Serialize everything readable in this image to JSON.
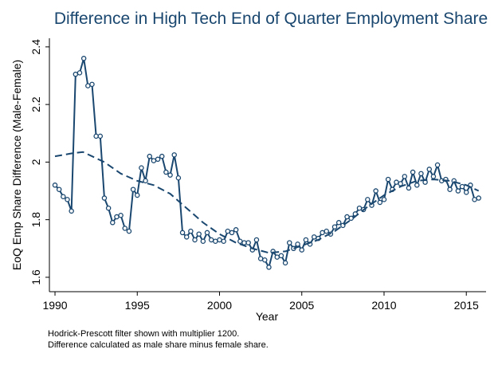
{
  "chart_data": {
    "type": "line",
    "title": "Difference in High Tech End of Quarter Employment Share",
    "x_label": "Year",
    "y_label": "EoQ Emp Share Difference (Male-Female)",
    "notes": [
      "Hodrick-Prescott filter shown with multiplier 1200.",
      "Difference calculated as male share minus female share."
    ],
    "xlim": [
      1989.66,
      2016.2
    ],
    "ylim": [
      1.55,
      2.43
    ],
    "xticks": [
      1990,
      1995,
      2000,
      2005,
      2010,
      2015
    ],
    "yticks": [
      1.6,
      1.8,
      2,
      2.2,
      2.4
    ],
    "series": [
      {
        "color": "#1a476f",
        "style": "solid",
        "markers": true,
        "x": [
          1990,
          1990.25,
          1990.5,
          1990.75,
          1991,
          1991.25,
          1991.5,
          1991.75,
          1992,
          1992.25,
          1992.5,
          1992.75,
          1993,
          1993.25,
          1993.5,
          1993.75,
          1994,
          1994.25,
          1994.5,
          1994.75,
          1995,
          1995.25,
          1995.5,
          1995.75,
          1996,
          1996.25,
          1996.5,
          1996.75,
          1997,
          1997.25,
          1997.5,
          1997.75,
          1998,
          1998.25,
          1998.5,
          1998.75,
          1999,
          1999.25,
          1999.5,
          1999.75,
          2000,
          2000.25,
          2000.5,
          2000.75,
          2001,
          2001.25,
          2001.5,
          2001.75,
          2002,
          2002.25,
          2002.5,
          2002.75,
          2003,
          2003.25,
          2003.5,
          2003.75,
          2004,
          2004.25,
          2004.5,
          2004.75,
          2005,
          2005.25,
          2005.5,
          2005.75,
          2006,
          2006.25,
          2006.5,
          2006.75,
          2007,
          2007.25,
          2007.5,
          2007.75,
          2008,
          2008.25,
          2008.5,
          2008.75,
          2009,
          2009.25,
          2009.5,
          2009.75,
          2010,
          2010.25,
          2010.5,
          2010.75,
          2011,
          2011.25,
          2011.5,
          2011.75,
          2012,
          2012.25,
          2012.5,
          2012.75,
          2013,
          2013.25,
          2013.5,
          2013.75,
          2014,
          2014.25,
          2014.5,
          2014.75,
          2015,
          2015.25,
          2015.5,
          2015.75
        ],
        "values": [
          1.92,
          1.905,
          1.88,
          1.87,
          1.83,
          2.305,
          2.31,
          2.36,
          2.265,
          2.27,
          2.09,
          2.09,
          1.875,
          1.84,
          1.79,
          1.81,
          1.815,
          1.77,
          1.76,
          1.905,
          1.885,
          1.98,
          1.935,
          2.02,
          2.005,
          2.01,
          2.02,
          1.965,
          1.955,
          2.025,
          1.945,
          1.755,
          1.74,
          1.76,
          1.73,
          1.75,
          1.725,
          1.755,
          1.73,
          1.725,
          1.73,
          1.725,
          1.76,
          1.755,
          1.765,
          1.725,
          1.72,
          1.72,
          1.695,
          1.73,
          1.665,
          1.66,
          1.635,
          1.69,
          1.67,
          1.675,
          1.65,
          1.72,
          1.7,
          1.715,
          1.695,
          1.73,
          1.715,
          1.74,
          1.735,
          1.755,
          1.76,
          1.75,
          1.775,
          1.79,
          1.78,
          1.81,
          1.805,
          1.82,
          1.84,
          1.835,
          1.87,
          1.85,
          1.9,
          1.86,
          1.87,
          1.94,
          1.905,
          1.93,
          1.925,
          1.95,
          1.91,
          1.965,
          1.92,
          1.96,
          1.93,
          1.975,
          1.95,
          1.99,
          1.935,
          1.94,
          1.905,
          1.935,
          1.9,
          1.915,
          1.895,
          1.92,
          1.87,
          1.875
        ]
      },
      {
        "color": "#1a476f",
        "style": "dashed",
        "markers": false,
        "x": [
          1990,
          1991,
          1991.7,
          1993,
          1994,
          1995,
          1996,
          1997,
          1998,
          1999,
          2000,
          2001,
          2002,
          2003,
          2004,
          2005,
          2006,
          2007,
          2008,
          2009,
          2010,
          2011,
          2012,
          2013,
          2014,
          2015,
          2015.75
        ],
        "values": [
          2.02,
          2.03,
          2.035,
          2.0,
          1.96,
          1.935,
          1.92,
          1.89,
          1.84,
          1.79,
          1.75,
          1.72,
          1.7,
          1.685,
          1.69,
          1.71,
          1.73,
          1.76,
          1.8,
          1.845,
          1.885,
          1.915,
          1.935,
          1.94,
          1.935,
          1.92,
          1.9
        ]
      }
    ]
  }
}
